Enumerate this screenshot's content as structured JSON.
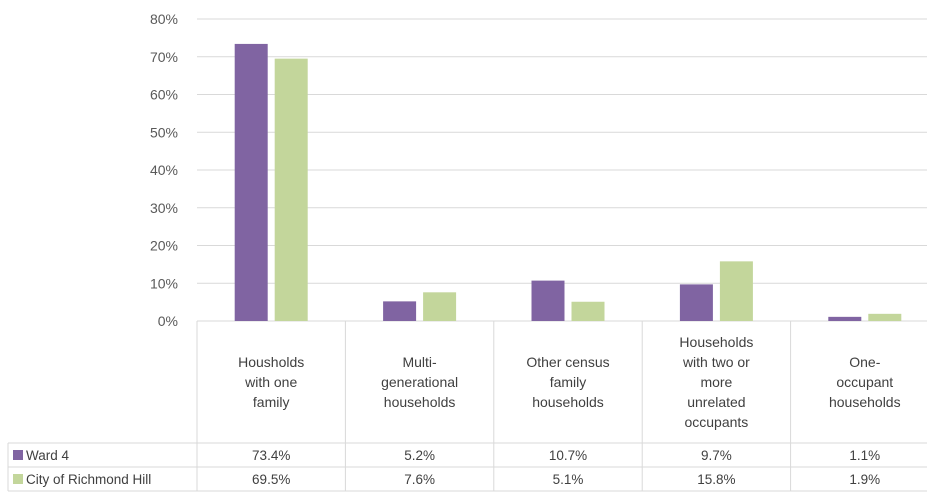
{
  "chart_data": {
    "type": "bar",
    "categories": [
      [
        "Housholds",
        "with one",
        "family"
      ],
      [
        "Multi-",
        "generational",
        "households"
      ],
      [
        "Other census",
        "family",
        "households"
      ],
      [
        "Households",
        "with two or",
        "more",
        "unrelated",
        "occupants"
      ],
      [
        "One-",
        "occupant",
        "households"
      ]
    ],
    "series": [
      {
        "name": "Ward 4",
        "values": [
          73.4,
          5.2,
          10.7,
          9.7,
          1.1
        ],
        "labels": [
          "73.4%",
          "5.2%",
          "10.7%",
          "9.7%",
          "1.1%"
        ],
        "color": "#8064a2"
      },
      {
        "name": "City of Richmond Hill",
        "values": [
          69.5,
          7.6,
          5.1,
          15.8,
          1.9
        ],
        "labels": [
          "69.5%",
          "7.6%",
          "5.1%",
          "15.8%",
          "1.9%"
        ],
        "color": "#c3d69b"
      }
    ],
    "yticks": [
      "0%",
      "10%",
      "20%",
      "30%",
      "40%",
      "50%",
      "60%",
      "70%",
      "80%"
    ],
    "ylim": [
      0,
      80
    ],
    "grid": true,
    "legend": "data-table",
    "gridline_color": "#d9d9d9"
  }
}
